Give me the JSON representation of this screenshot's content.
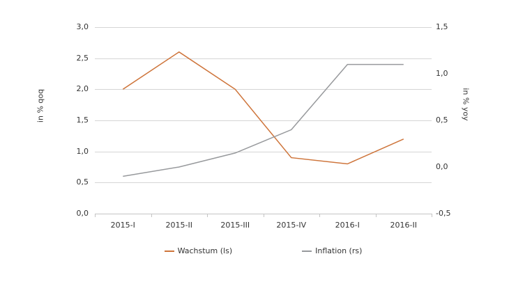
{
  "chart_data": {
    "type": "line",
    "title": "",
    "categories": [
      "2015-I",
      "2015-II",
      "2015-III",
      "2015-IV",
      "2016-I",
      "2016-II"
    ],
    "series": [
      {
        "name": "Wachstum (ls)",
        "axis": "left",
        "color": "#CE743A",
        "values": [
          2.0,
          2.6,
          2.0,
          0.9,
          0.8,
          1.2
        ]
      },
      {
        "name": "Inflation (rs)",
        "axis": "right",
        "color": "#97999C",
        "values": [
          -0.1,
          0.0,
          0.15,
          0.4,
          1.1,
          1.1
        ]
      }
    ],
    "left_axis": {
      "label": "in % qoq",
      "min": 0,
      "max": 3,
      "tick_labels": [
        "3,0",
        "2,5",
        "2,0",
        "1,5",
        "1,0",
        "0,5",
        "0,0"
      ]
    },
    "right_axis": {
      "label": "in % yoy",
      "min": -0.5,
      "max": 1.5,
      "tick_labels": [
        "1,5",
        "1,0",
        "0,5",
        "0,0",
        "-0,5"
      ]
    },
    "legend": {
      "position": "bottom",
      "items": [
        "Wachstum (ls)",
        "Inflation (rs)"
      ]
    },
    "grid": true
  },
  "styles": {
    "background": "#FFFFFF",
    "grid_color": "#D5D5D5",
    "axis_color": "#C4C4C4",
    "text_color": "#333333",
    "growth_color": "#CE743A",
    "inflation_color": "#97999C"
  }
}
